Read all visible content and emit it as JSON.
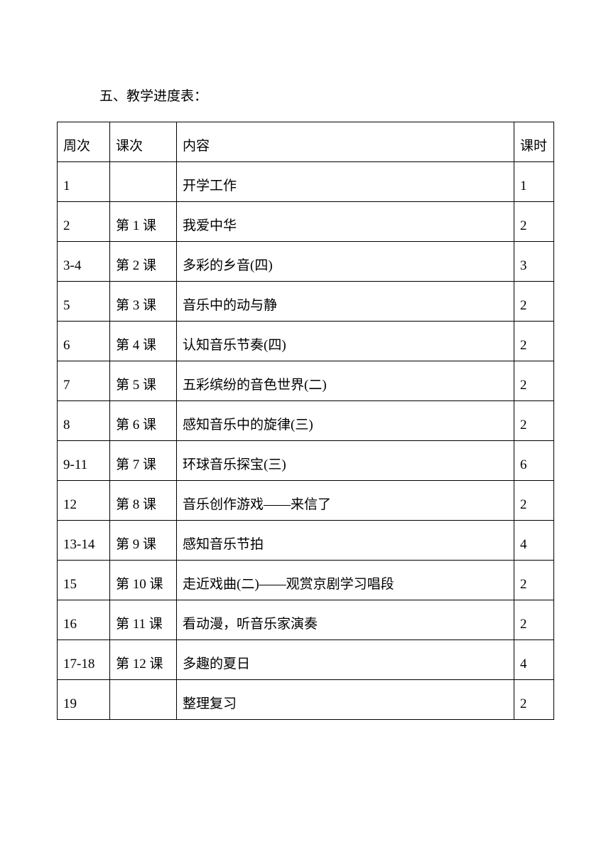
{
  "title": "五、教学进度表：",
  "table": {
    "headers": {
      "week": "周次",
      "lesson": "课次",
      "content": "内容",
      "hours": "课时"
    },
    "rows": [
      {
        "week": "1",
        "lesson": "",
        "content": "开学工作",
        "hours": "1"
      },
      {
        "week": "2",
        "lesson": "第 1 课",
        "content": "我爱中华",
        "hours": "2"
      },
      {
        "week": "3-4",
        "lesson": "第 2 课",
        "content": "多彩的乡音(四)",
        "hours": "3"
      },
      {
        "week": "5",
        "lesson": "第 3 课",
        "content": "音乐中的动与静",
        "hours": "2"
      },
      {
        "week": "6",
        "lesson": "第 4 课",
        "content": "认知音乐节奏(四)",
        "hours": "2"
      },
      {
        "week": "7",
        "lesson": "第 5 课",
        "content": "五彩缤纷的音色世界(二)",
        "hours": "2"
      },
      {
        "week": "8",
        "lesson": "第 6 课",
        "content": "感知音乐中的旋律(三)",
        "hours": "2"
      },
      {
        "week": "9-11",
        "lesson": "第 7 课",
        "content": "环球音乐探宝(三)",
        "hours": "6"
      },
      {
        "week": "12",
        "lesson": "第 8 课",
        "content": "音乐创作游戏——来信了",
        "hours": "2"
      },
      {
        "week": "13-14",
        "lesson": "第 9 课",
        "content": "感知音乐节拍",
        "hours": "4"
      },
      {
        "week": "15",
        "lesson": "第 10 课",
        "content": "走近戏曲(二)——观赏京剧学习唱段",
        "hours": "2"
      },
      {
        "week": "16",
        "lesson": "第 11 课",
        "content": "看动漫，听音乐家演奏",
        "hours": "2"
      },
      {
        "week": "17-18",
        "lesson": "第 12 课",
        "content": "多趣的夏日",
        "hours": "4"
      },
      {
        "week": "19",
        "lesson": "",
        "content": "整理复习",
        "hours": "2"
      }
    ]
  }
}
